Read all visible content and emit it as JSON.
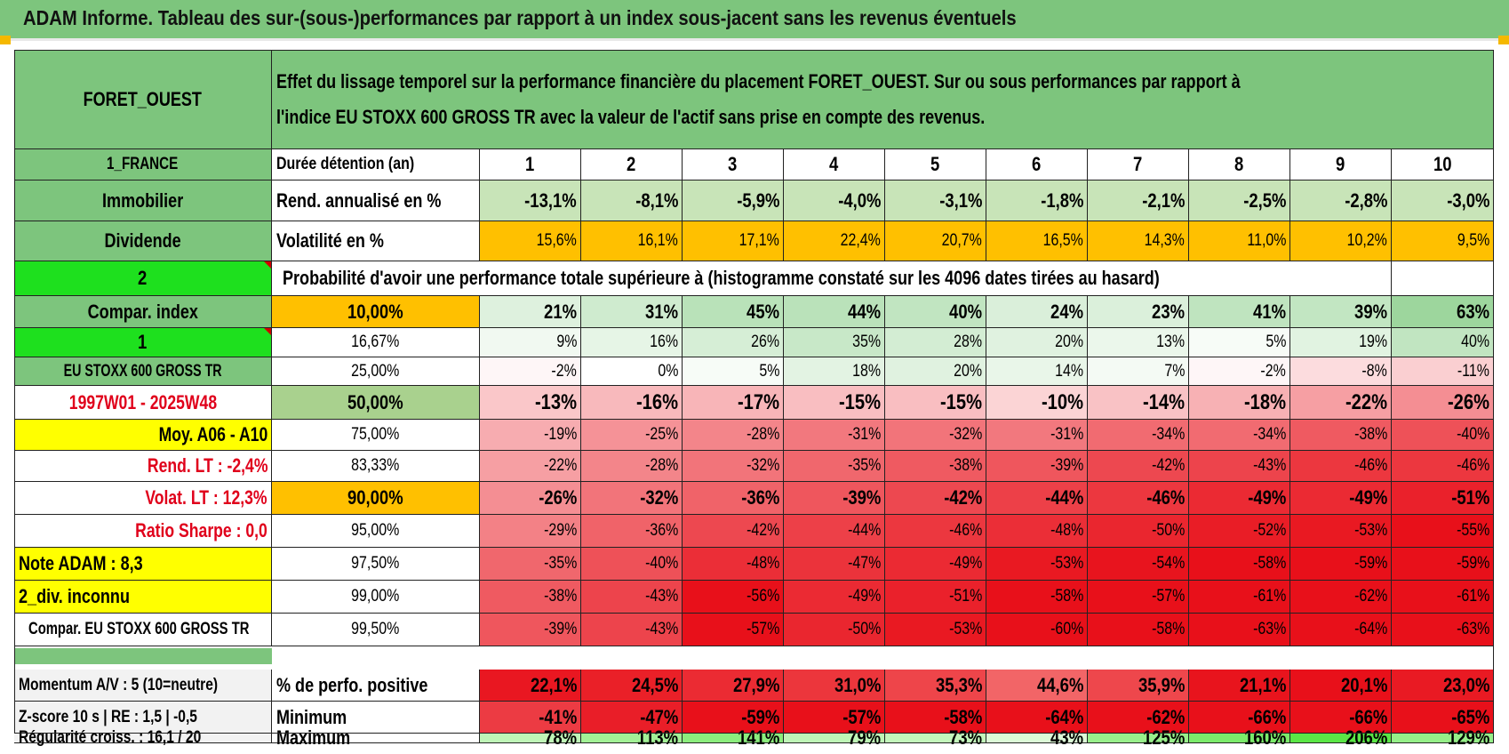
{
  "title": "ADAM Informe. Tableau des sur-(sous-)performances par rapport à un index sous-jacent sans les revenus éventuels",
  "header": {
    "fund": "FORET_OUEST",
    "description_line1": "Effet du lissage temporel sur la performance financière du placement FORET_OUEST. Sur ou sous performances par rapport à",
    "description_line2": "l'indice EU STOXX 600 GROSS TR avec la valeur de l'actif sans prise en compte des revenus."
  },
  "left_labels": {
    "country": "1_FRANCE",
    "asset_class": "Immobilier",
    "income": "Dividende",
    "index_code": "2",
    "compar_index": "Compar. index",
    "index_num": "1",
    "index_name": "EU STOXX 600 GROSS TR",
    "period": "1997W01 - 2025W48",
    "moy": "Moy. A06 - A10",
    "rend_lt": "Rend. LT :    -2,4%",
    "volat_lt": "Volat. LT :    12,3%",
    "sharpe": "Ratio Sharpe :     0,0",
    "note_adam": "Note ADAM : 8,3",
    "div": "2_div. inconnu",
    "compar_full": "Compar. EU STOXX 600 GROSS TR",
    "momentum": "Momentum A/V : 5 (10=neutre)",
    "zscore": "Z-score 10 s | RE : 1,5 | -0,5",
    "regularite": "Régularité croiss. : 16,1 / 20"
  },
  "holding_label": "Durée détention (an)",
  "years": [
    "1",
    "2",
    "3",
    "4",
    "5",
    "6",
    "7",
    "8",
    "9",
    "10"
  ],
  "rend_label": "Rend. annualisé en %",
  "rend": [
    "-13,1%",
    "-8,1%",
    "-5,9%",
    "-4,0%",
    "-3,1%",
    "-1,8%",
    "-2,1%",
    "-2,5%",
    "-2,8%",
    "-3,0%"
  ],
  "vol_label": "Volatilité en %",
  "vol": [
    "15,6%",
    "16,1%",
    "17,1%",
    "22,4%",
    "20,7%",
    "16,5%",
    "14,3%",
    "11,0%",
    "10,2%",
    "9,5%"
  ],
  "prob_label": "Probabilité d'avoir une performance totale supérieure à (histogramme constaté sur les 4096 dates tirées au hasard)",
  "quantiles": [
    {
      "p": "10,00%",
      "v": [
        "21%",
        "31%",
        "45%",
        "44%",
        "40%",
        "24%",
        "23%",
        "41%",
        "39%",
        "63%"
      ]
    },
    {
      "p": "16,67%",
      "v": [
        "9%",
        "16%",
        "26%",
        "35%",
        "28%",
        "20%",
        "13%",
        "5%",
        "19%",
        "40%"
      ]
    },
    {
      "p": "25,00%",
      "v": [
        "-2%",
        "0%",
        "5%",
        "18%",
        "20%",
        "14%",
        "7%",
        "-2%",
        "-8%",
        "-11%"
      ]
    },
    {
      "p": "50,00%",
      "v": [
        "-13%",
        "-16%",
        "-17%",
        "-15%",
        "-15%",
        "-10%",
        "-14%",
        "-18%",
        "-22%",
        "-26%"
      ]
    },
    {
      "p": "75,00%",
      "v": [
        "-19%",
        "-25%",
        "-28%",
        "-31%",
        "-32%",
        "-31%",
        "-34%",
        "-34%",
        "-38%",
        "-40%"
      ]
    },
    {
      "p": "83,33%",
      "v": [
        "-22%",
        "-28%",
        "-32%",
        "-35%",
        "-38%",
        "-39%",
        "-42%",
        "-43%",
        "-46%",
        "-46%"
      ]
    },
    {
      "p": "90,00%",
      "v": [
        "-26%",
        "-32%",
        "-36%",
        "-39%",
        "-42%",
        "-44%",
        "-46%",
        "-49%",
        "-49%",
        "-51%"
      ]
    },
    {
      "p": "95,00%",
      "v": [
        "-29%",
        "-36%",
        "-42%",
        "-44%",
        "-46%",
        "-48%",
        "-50%",
        "-52%",
        "-53%",
        "-55%"
      ]
    },
    {
      "p": "97,50%",
      "v": [
        "-35%",
        "-40%",
        "-48%",
        "-47%",
        "-49%",
        "-53%",
        "-54%",
        "-58%",
        "-59%",
        "-59%"
      ]
    },
    {
      "p": "99,00%",
      "v": [
        "-38%",
        "-43%",
        "-56%",
        "-49%",
        "-51%",
        "-58%",
        "-57%",
        "-61%",
        "-62%",
        "-61%"
      ]
    },
    {
      "p": "99,50%",
      "v": [
        "-39%",
        "-43%",
        "-57%",
        "-50%",
        "-53%",
        "-60%",
        "-58%",
        "-63%",
        "-64%",
        "-63%"
      ]
    }
  ],
  "pos_label": "% de perfo. positive",
  "pos": [
    "22,1%",
    "24,5%",
    "27,9%",
    "31,0%",
    "35,3%",
    "44,6%",
    "35,9%",
    "21,1%",
    "20,1%",
    "23,0%"
  ],
  "min_label": "Minimum",
  "min": [
    "-41%",
    "-47%",
    "-59%",
    "-57%",
    "-58%",
    "-64%",
    "-62%",
    "-66%",
    "-66%",
    "-65%"
  ],
  "max_label": "Maximum",
  "max": [
    "78%",
    "113%",
    "141%",
    "79%",
    "73%",
    "43%",
    "125%",
    "160%",
    "206%",
    "129%"
  ],
  "colors": {
    "title_green": "#7dc57d",
    "header_green": "#7dc57d",
    "bright_green": "#1ee01e",
    "orange": "#ffc000",
    "yellow": "#ffff00",
    "label_red": "#e0001b",
    "neg_strong": "#e8101a",
    "pos_strong": "#63be63"
  }
}
